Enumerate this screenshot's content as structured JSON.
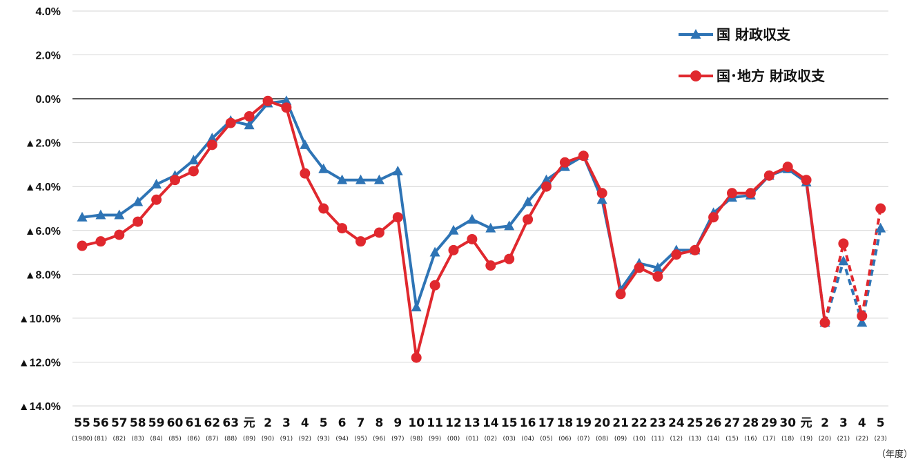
{
  "chart_data": {
    "type": "line",
    "x_unit_label": "（年度）",
    "categories": [
      "55",
      "56",
      "57",
      "58",
      "59",
      "60",
      "61",
      "62",
      "63",
      "元",
      "2",
      "3",
      "4",
      "5",
      "6",
      "7",
      "8",
      "9",
      "10",
      "11",
      "12",
      "13",
      "14",
      "15",
      "16",
      "17",
      "18",
      "19",
      "20",
      "21",
      "22",
      "23",
      "24",
      "25",
      "26",
      "27",
      "28",
      "29",
      "30",
      "元",
      "2",
      "3",
      "4",
      "5"
    ],
    "sub_categories": [
      "(1980)",
      "(81)",
      "(82)",
      "(83)",
      "(84)",
      "(85)",
      "(86)",
      "(87)",
      "(88)",
      "(89)",
      "(90)",
      "(91)",
      "(92)",
      "(93)",
      "(94)",
      "(95)",
      "(96)",
      "(97)",
      "(98)",
      "(99)",
      "(00)",
      "(01)",
      "(02)",
      "(03)",
      "(04)",
      "(05)",
      "(06)",
      "(07)",
      "(08)",
      "(09)",
      "(10)",
      "(11)",
      "(12)",
      "(13)",
      "(14)",
      "(15)",
      "(16)",
      "(17)",
      "(18)",
      "(19)",
      "(20)",
      "(21)",
      "(22)",
      "(23)"
    ],
    "y_tick_labels": [
      "4.0%",
      "2.0%",
      "0.0%",
      "▲2.0%",
      "▲4.0%",
      "▲6.0%",
      "▲8.0%",
      "▲10.0%",
      "▲12.0%",
      "▲14.0%"
    ],
    "y_tick_values": [
      4,
      2,
      0,
      -2,
      -4,
      -6,
      -8,
      -10,
      -12,
      -14
    ],
    "ylim": [
      -14,
      4
    ],
    "grid": true,
    "legend_position": "top-right",
    "dashed_from_index": 40,
    "series": [
      {
        "name": "国 財政収支",
        "color": "#2e74b5",
        "marker": "triangle",
        "values": [
          -5.4,
          -5.3,
          -5.3,
          -4.7,
          -3.9,
          -3.5,
          -2.8,
          -1.8,
          -1.0,
          -1.2,
          -0.2,
          -0.1,
          -2.1,
          -3.2,
          -3.7,
          -3.7,
          -3.7,
          -3.3,
          -9.5,
          -7.0,
          -6.0,
          -5.5,
          -5.9,
          -5.8,
          -4.7,
          -3.7,
          -3.1,
          -2.6,
          -4.6,
          -8.7,
          -7.5,
          -7.7,
          -6.9,
          -6.9,
          -5.2,
          -4.5,
          -4.4,
          -3.5,
          -3.2,
          -3.8,
          -10.2,
          -7.4,
          -10.2,
          -5.9
        ]
      },
      {
        "name": "国･地方 財政収支",
        "color": "#e0282e",
        "marker": "circle",
        "values": [
          -6.7,
          -6.5,
          -6.2,
          -5.6,
          -4.6,
          -3.7,
          -3.3,
          -2.1,
          -1.1,
          -0.8,
          -0.1,
          -0.4,
          -3.4,
          -5.0,
          -5.9,
          -6.5,
          -6.1,
          -5.4,
          -11.8,
          -8.5,
          -6.9,
          -6.4,
          -7.6,
          -7.3,
          -5.5,
          -4.0,
          -2.9,
          -2.6,
          -4.3,
          -8.9,
          -7.7,
          -8.1,
          -7.1,
          -6.9,
          -5.4,
          -4.3,
          -4.3,
          -3.5,
          -3.1,
          -3.7,
          -10.2,
          -6.6,
          -9.9,
          -5.0
        ]
      }
    ]
  }
}
